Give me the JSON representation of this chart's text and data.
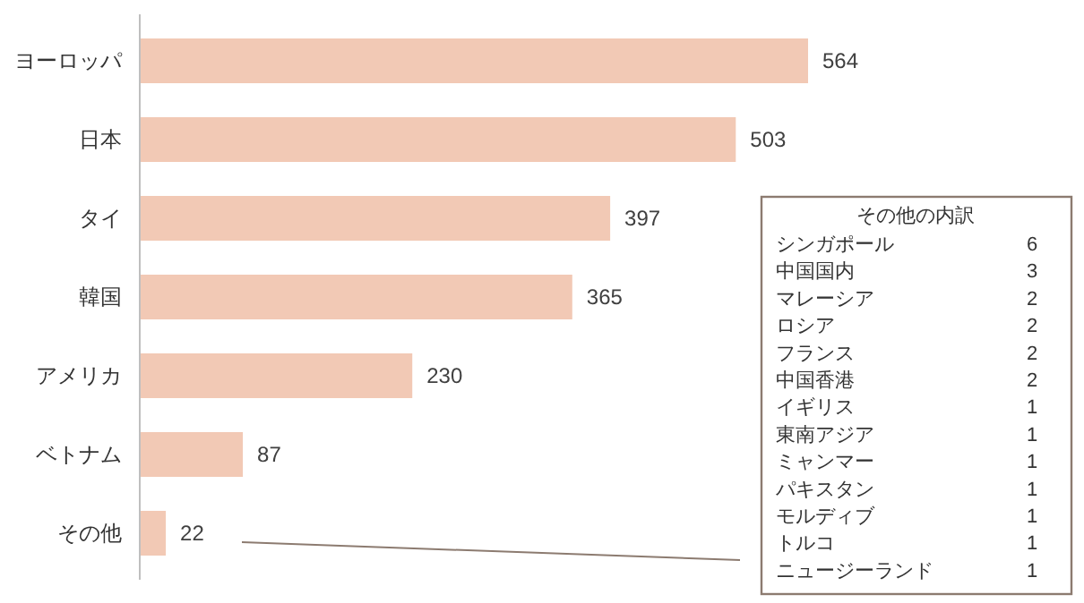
{
  "chart_data": [
    {
      "type": "bar",
      "orientation": "horizontal",
      "categories": [
        "ヨーロッパ",
        "日本",
        "タイ",
        "韓国",
        "アメリカ",
        "ベトナム",
        "その他"
      ],
      "values": [
        564,
        503,
        397,
        365,
        230,
        87,
        22
      ],
      "color": "#f2c9b5",
      "data_labels": true
    },
    {
      "type": "other",
      "title": "その他の内訳",
      "categories": [
        "シンガポール",
        "中国国内",
        "マレーシア",
        "ロシア",
        "フランス",
        "中国香港",
        "イギリス",
        "東南アジア",
        "ミャンマー",
        "パキスタン",
        "モルディブ",
        "トルコ",
        "ニュージーランド"
      ],
      "values": [
        6,
        3,
        2,
        2,
        2,
        2,
        1,
        1,
        1,
        1,
        1,
        1,
        1
      ],
      "data_labels": true
    }
  ]
}
